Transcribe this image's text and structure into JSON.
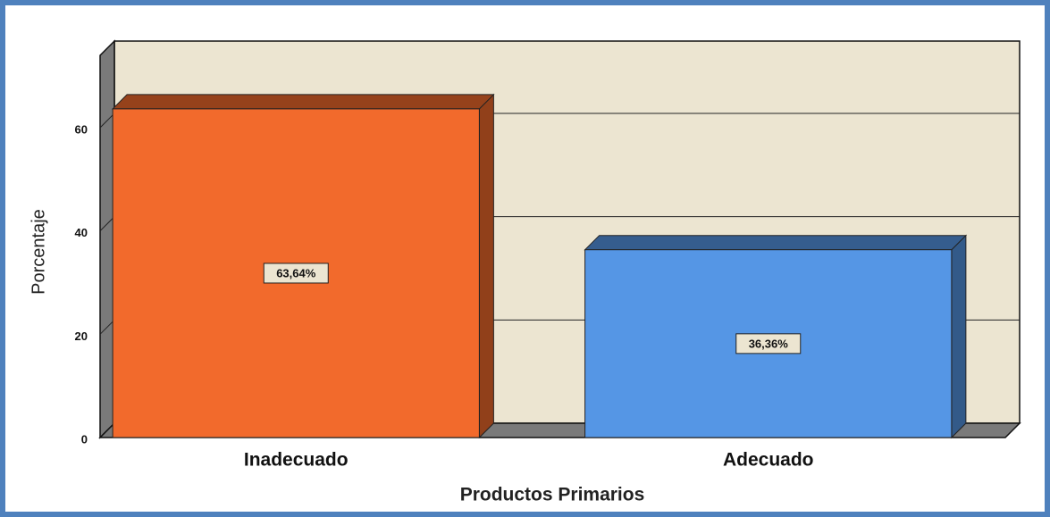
{
  "chart_data": {
    "type": "bar",
    "categories": [
      "Inadecuado",
      "Adecuado"
    ],
    "values": [
      63.64,
      36.36
    ],
    "value_labels": [
      "63,64%",
      "36,36%"
    ],
    "series_colors": [
      "#f26a2c",
      "#5596e5"
    ],
    "x_label": "Productos Primarios",
    "y_label": "Porcentaje",
    "ylim": [
      0,
      74
    ],
    "yticks": [
      0,
      20,
      40,
      60
    ],
    "grid": true
  }
}
